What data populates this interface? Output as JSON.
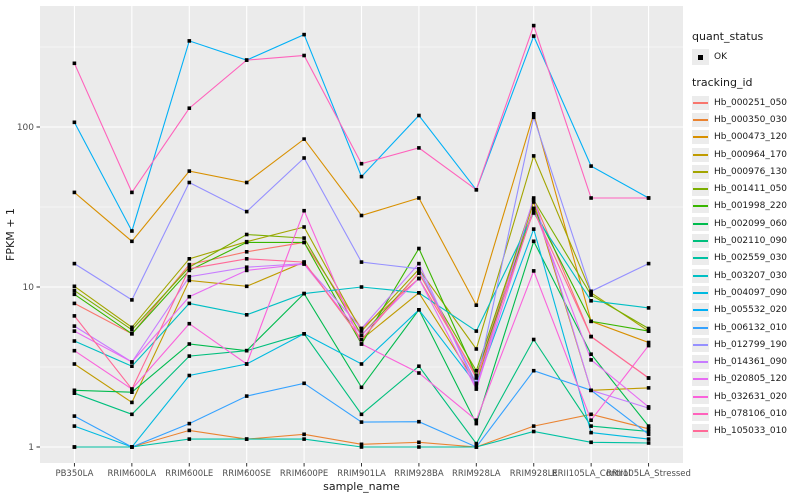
{
  "chart": {
    "xlabel": "sample_name",
    "ylabel": "FPKM + 1",
    "legend_quant_title": "quant_status",
    "legend_quant_item": "OK",
    "legend_tracking_title": "tracking_id"
  },
  "colors": {
    "page_bg": "#FFFFFF",
    "panel_bg": "#EBEBEB",
    "grid": "#FFFFFF",
    "tick_text": "#4D4D4D",
    "axis_title_text": "#1A1A1A",
    "tick_mark": "#333333",
    "point": "#000000",
    "legend_key_bg": "#ECECEC"
  },
  "chart_data": {
    "type": "line",
    "title": "",
    "xlabel": "sample_name",
    "ylabel": "FPKM + 1",
    "y_scale": "log10",
    "y_ticks": [
      1,
      10,
      100
    ],
    "y_tick_labels": [
      "1",
      "10",
      "100"
    ],
    "y_minor_ticks": [
      3.162,
      31.62,
      316.2
    ],
    "ylim": [
      0.81,
      560
    ],
    "grid": true,
    "legend_position": "right",
    "point_shape": "filled-black-square",
    "quant_status_legend": {
      "title": "quant_status",
      "items": [
        "OK"
      ]
    },
    "tracking_id_legend_title": "tracking_id",
    "x_categories": [
      "PB350LA",
      "RRIM600LA",
      "RRIM600LE",
      "RRIM600SE",
      "RRIM600PE",
      "RRIM901LA",
      "RRIM928BA",
      "RRIM928LA",
      "RRIM928LE",
      "RRII105LA_Control",
      "RRII105LA_Stressed"
    ],
    "series": [
      {
        "name": "Hb_000251_050",
        "color": "#F8766D",
        "quant_status": "OK",
        "values": [
          7.9,
          5.1,
          13.8,
          16.6,
          19.0,
          5.5,
          11.3,
          2.8,
          35,
          4.9,
          2.7
        ]
      },
      {
        "name": "Hb_000350_030",
        "color": "#EA8331",
        "quant_status": "OK",
        "values": [
          1.0,
          1.0,
          1.27,
          1.12,
          1.2,
          1.04,
          1.07,
          1.0,
          1.35,
          1.6,
          1.3
        ]
      },
      {
        "name": "Hb_000473_120",
        "color": "#D89000",
        "quant_status": "OK",
        "values": [
          39,
          19.3,
          53,
          45,
          84,
          28,
          36,
          7.7,
          121,
          6.1,
          4.5
        ]
      },
      {
        "name": "Hb_000964_170",
        "color": "#C09B00",
        "quant_status": "OK",
        "values": [
          3.3,
          1.9,
          11.0,
          10.1,
          14.3,
          4.7,
          9.2,
          2.5,
          34,
          2.26,
          2.34
        ]
      },
      {
        "name": "Hb_000976_130",
        "color": "#A3A500",
        "quant_status": "OK",
        "values": [
          10.1,
          5.6,
          15.0,
          19.2,
          23.7,
          5.3,
          12.9,
          4.1,
          66,
          9.2,
          5.3
        ]
      },
      {
        "name": "Hb_001411_050",
        "color": "#7CAE00",
        "quant_status": "OK",
        "values": [
          9.5,
          5.4,
          13.3,
          21.3,
          20.2,
          5.0,
          12.2,
          3.0,
          35,
          8.9,
          5.5
        ]
      },
      {
        "name": "Hb_001998_220",
        "color": "#39B600",
        "quant_status": "OK",
        "values": [
          9.0,
          5.1,
          12.7,
          19.0,
          19.0,
          4.4,
          17.4,
          2.8,
          31,
          6.1,
          5.3
        ]
      },
      {
        "name": "Hb_002099_060",
        "color": "#00BB4E",
        "quant_status": "OK",
        "values": [
          2.26,
          2.2,
          4.4,
          4.0,
          9.1,
          2.36,
          7.2,
          1.4,
          19.3,
          3.8,
          1.35
        ]
      },
      {
        "name": "Hb_002110_090",
        "color": "#00BF7D",
        "quant_status": "OK",
        "values": [
          2.17,
          1.6,
          3.7,
          4.0,
          5.1,
          1.6,
          3.2,
          1.05,
          4.7,
          1.35,
          1.25
        ]
      },
      {
        "name": "Hb_002559_030",
        "color": "#00C1A3",
        "quant_status": "OK",
        "values": [
          1.0,
          1.0,
          1.12,
          1.12,
          1.12,
          1.0,
          1.0,
          1.0,
          1.25,
          1.07,
          1.06
        ]
      },
      {
        "name": "Hb_003207_030",
        "color": "#00BFC4",
        "quant_status": "OK",
        "values": [
          4.6,
          3.2,
          7.9,
          6.7,
          9.1,
          10.0,
          9.2,
          5.3,
          29,
          8.2,
          7.4
        ]
      },
      {
        "name": "Hb_004097_090",
        "color": "#00BAE0",
        "quant_status": "OK",
        "values": [
          1.35,
          1.0,
          2.8,
          3.3,
          5.1,
          3.3,
          7.2,
          2.46,
          23,
          1.23,
          1.12
        ]
      },
      {
        "name": "Hb_005532_020",
        "color": "#00B0F6",
        "quant_status": "OK",
        "values": [
          107,
          22.4,
          345,
          262,
          378,
          49,
          118,
          40.5,
          370,
          57,
          36
        ]
      },
      {
        "name": "Hb_006132_010",
        "color": "#35A2FF",
        "quant_status": "OK",
        "values": [
          1.56,
          1.0,
          1.4,
          2.08,
          2.5,
          1.43,
          1.44,
          1.0,
          3.0,
          2.26,
          1.2
        ]
      },
      {
        "name": "Hb_012799_190",
        "color": "#9590FF",
        "quant_status": "OK",
        "values": [
          14,
          8.3,
          45,
          29.6,
          64,
          14.3,
          13,
          2.5,
          115,
          9.4,
          14
        ]
      },
      {
        "name": "Hb_014361_090",
        "color": "#C77CFF",
        "quant_status": "OK",
        "values": [
          5.7,
          3.4,
          11.6,
          13.3,
          14,
          5.5,
          14,
          2.36,
          36,
          2.26,
          1.75
        ]
      },
      {
        "name": "Hb_020805_120",
        "color": "#E76BF3",
        "quant_status": "OK",
        "values": [
          5.3,
          3.4,
          8.7,
          12.7,
          13.9,
          5.0,
          11.3,
          2.3,
          31,
          3.5,
          1.78
        ]
      },
      {
        "name": "Hb_032631_020",
        "color": "#FA62DB",
        "quant_status": "OK",
        "values": [
          4.0,
          2.3,
          5.9,
          3.3,
          30,
          4.4,
          2.9,
          1.47,
          12.6,
          1.47,
          4.3
        ]
      },
      {
        "name": "Hb_078106_010",
        "color": "#FF62BC",
        "quant_status": "OK",
        "values": [
          250,
          39,
          131,
          262,
          280,
          59,
          74,
          40.5,
          430,
          36,
          36
        ]
      },
      {
        "name": "Hb_105033_010",
        "color": "#FF6A98",
        "quant_status": "OK",
        "values": [
          6.6,
          2.3,
          13,
          15,
          14.3,
          4.7,
          12.3,
          2.7,
          30,
          4.9,
          2.7
        ]
      }
    ]
  }
}
